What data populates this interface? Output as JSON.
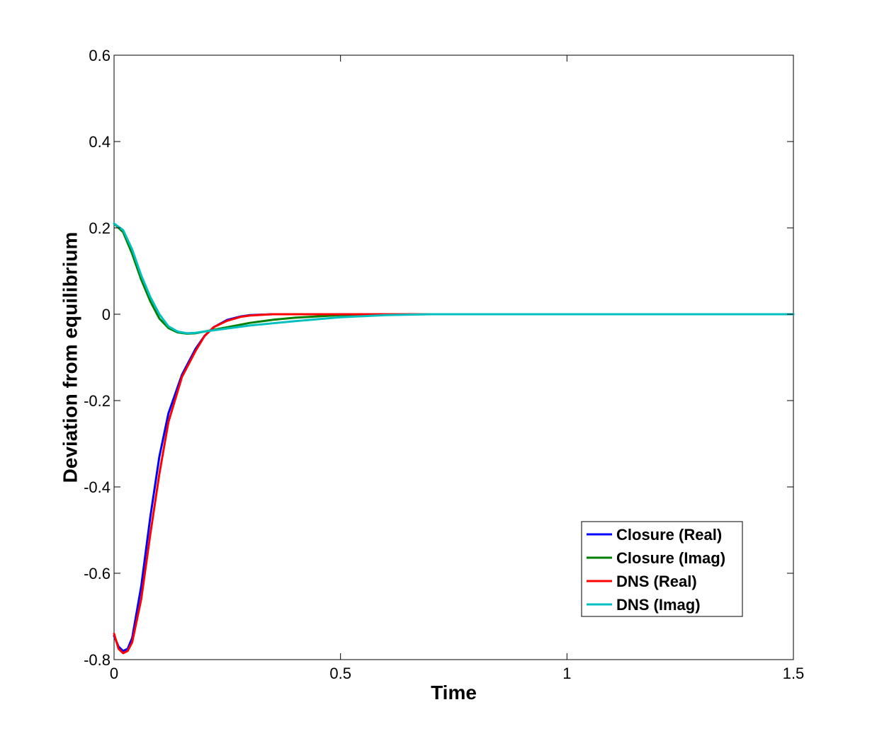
{
  "chart_data": {
    "type": "line",
    "title": "",
    "xlabel": "Time",
    "ylabel": "Deviation from equilibrium",
    "xlim": [
      0,
      1.5
    ],
    "ylim": [
      -0.8,
      0.6
    ],
    "xticks": [
      0,
      0.5,
      1,
      1.5
    ],
    "xtick_labels": [
      "0",
      "0.5",
      "1",
      "1.5"
    ],
    "yticks": [
      -0.8,
      -0.6,
      -0.4,
      -0.2,
      0,
      0.2,
      0.4,
      0.6
    ],
    "ytick_labels": [
      "-0.8",
      "-0.6",
      "-0.4",
      "-0.2",
      "0",
      "0.2",
      "0.4",
      "0.6"
    ],
    "grid": false,
    "legend_position": "lower-right",
    "series": [
      {
        "name": "Closure (Real)",
        "color": "#0000ff",
        "x": [
          0,
          0.01,
          0.02,
          0.03,
          0.04,
          0.06,
          0.08,
          0.1,
          0.12,
          0.15,
          0.18,
          0.2,
          0.22,
          0.25,
          0.28,
          0.3,
          0.35,
          0.4,
          0.5,
          0.6,
          0.8,
          1.0,
          1.2,
          1.5
        ],
        "values": [
          -0.745,
          -0.77,
          -0.78,
          -0.775,
          -0.75,
          -0.63,
          -0.47,
          -0.33,
          -0.23,
          -0.14,
          -0.08,
          -0.05,
          -0.03,
          -0.013,
          -0.005,
          -0.002,
          0,
          0,
          0,
          0,
          0,
          0,
          0,
          0
        ]
      },
      {
        "name": "Closure (Imag)",
        "color": "#008000",
        "x": [
          0,
          0.02,
          0.04,
          0.06,
          0.08,
          0.1,
          0.12,
          0.14,
          0.16,
          0.18,
          0.2,
          0.25,
          0.3,
          0.35,
          0.4,
          0.5,
          0.6,
          0.8,
          1.0,
          1.2,
          1.5
        ],
        "values": [
          0.21,
          0.19,
          0.14,
          0.08,
          0.03,
          -0.01,
          -0.032,
          -0.042,
          -0.045,
          -0.044,
          -0.04,
          -0.03,
          -0.02,
          -0.013,
          -0.008,
          -0.002,
          0,
          0,
          0,
          0,
          0
        ]
      },
      {
        "name": "DNS (Real)",
        "color": "#ff0000",
        "x": [
          0,
          0.01,
          0.02,
          0.03,
          0.04,
          0.06,
          0.08,
          0.1,
          0.12,
          0.15,
          0.18,
          0.2,
          0.22,
          0.25,
          0.28,
          0.3,
          0.35,
          0.4,
          0.5,
          0.6,
          0.8,
          1.0,
          1.2,
          1.5
        ],
        "values": [
          -0.74,
          -0.775,
          -0.785,
          -0.78,
          -0.76,
          -0.66,
          -0.51,
          -0.37,
          -0.25,
          -0.145,
          -0.085,
          -0.05,
          -0.03,
          -0.015,
          -0.006,
          -0.003,
          0,
          0,
          0,
          0,
          0,
          0,
          0,
          0
        ]
      },
      {
        "name": "DNS (Imag)",
        "color": "#00bfbf",
        "x": [
          0,
          0.02,
          0.04,
          0.06,
          0.08,
          0.1,
          0.12,
          0.14,
          0.16,
          0.18,
          0.2,
          0.25,
          0.3,
          0.35,
          0.4,
          0.5,
          0.6,
          0.7,
          0.8,
          1.0,
          1.2,
          1.5
        ],
        "values": [
          0.21,
          0.195,
          0.15,
          0.09,
          0.04,
          0.0,
          -0.028,
          -0.04,
          -0.044,
          -0.043,
          -0.04,
          -0.033,
          -0.026,
          -0.021,
          -0.016,
          -0.007,
          -0.002,
          0,
          0,
          0,
          0,
          0
        ]
      }
    ]
  }
}
